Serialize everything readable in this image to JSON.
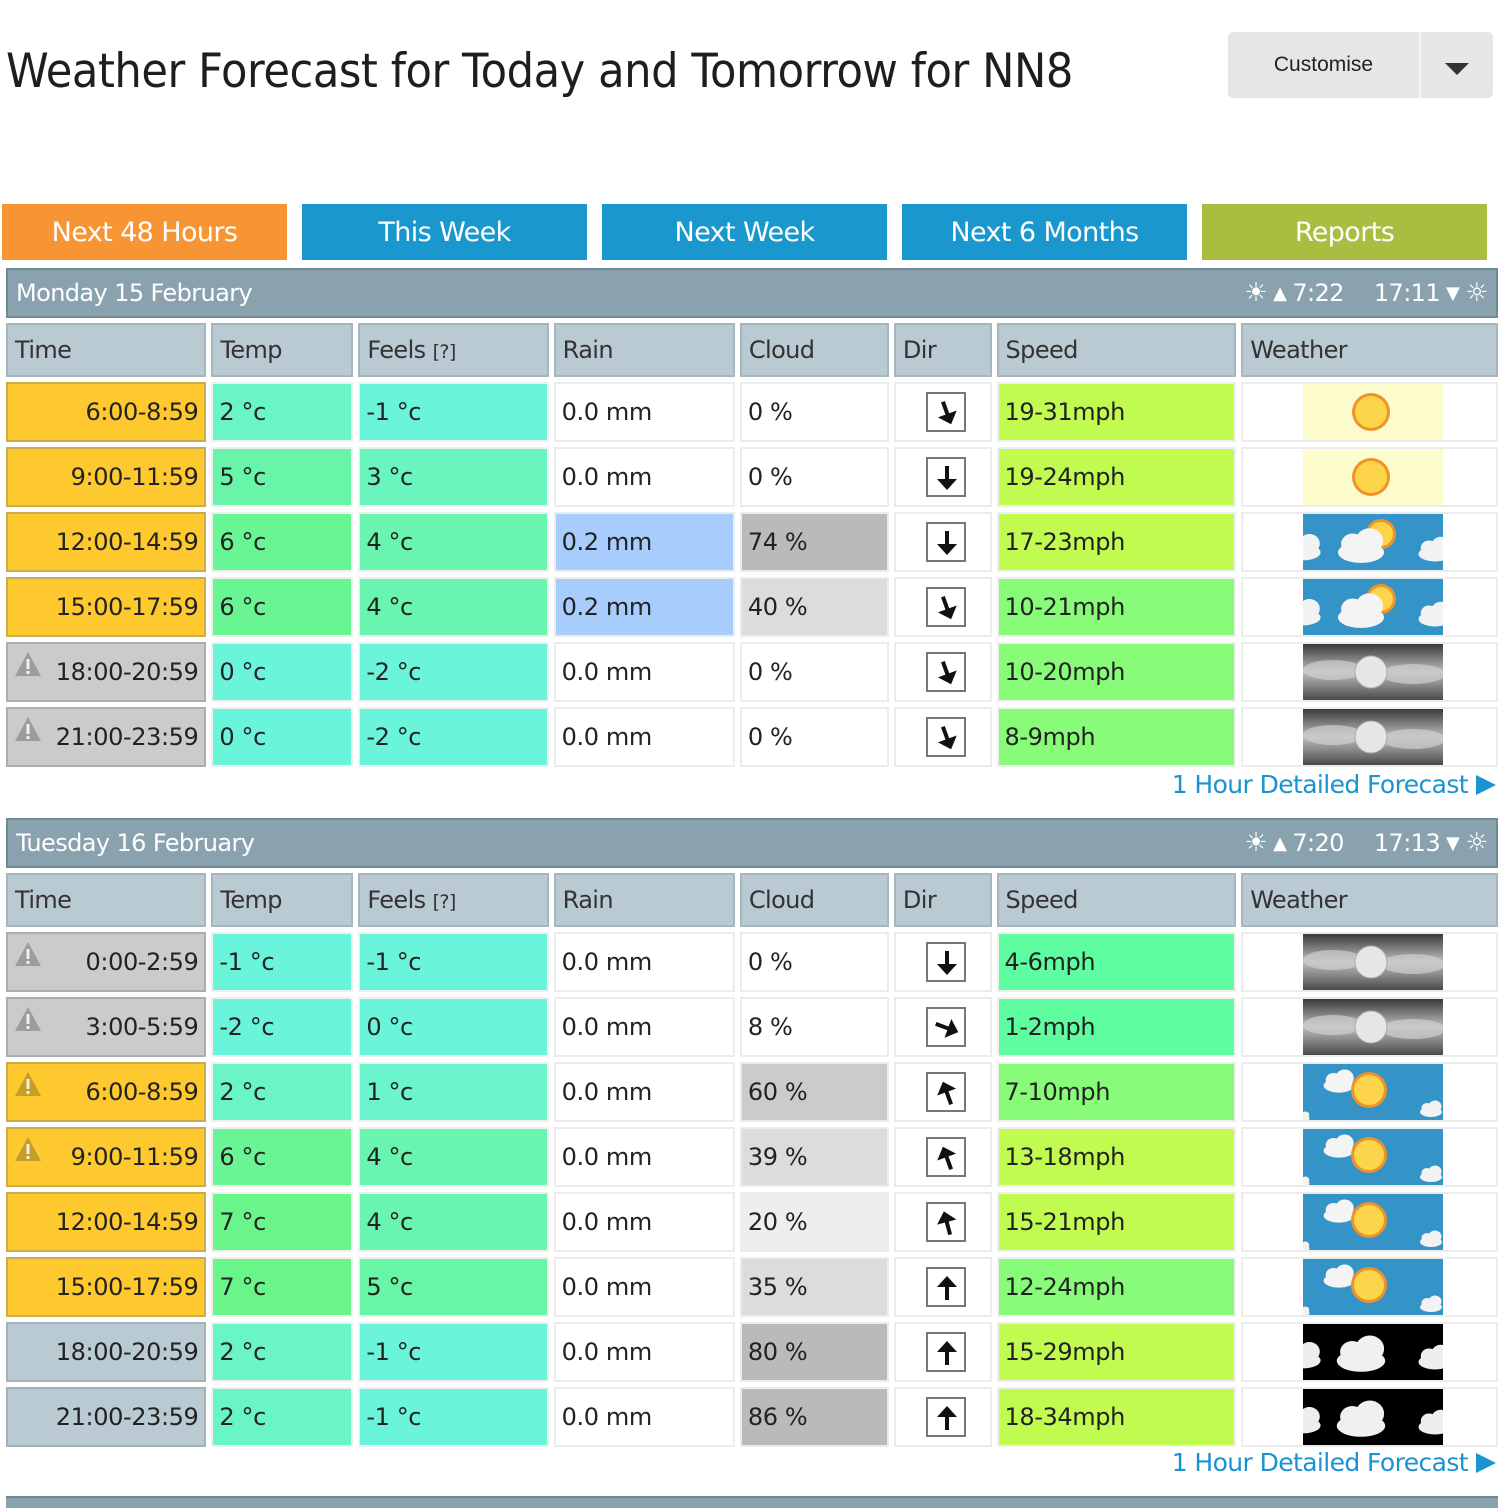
{
  "header": {
    "title": "Weather Forecast for Today and Tomorrow for NN8",
    "customise_label": "Customise"
  },
  "tabs": [
    {
      "label": "Next 48 Hours",
      "color": "#f79433",
      "active": true
    },
    {
      "label": "This Week",
      "color": "#1a97cd",
      "active": false
    },
    {
      "label": "Next Week",
      "color": "#1a97cd",
      "active": false
    },
    {
      "label": "Next 6 Months",
      "color": "#1a97cd",
      "active": false
    },
    {
      "label": "Reports",
      "color": "#a9bd40",
      "active": false
    }
  ],
  "columns": {
    "time": "Time",
    "temp": "Temp",
    "feels": "Feels",
    "feels_help": "[?]",
    "rain": "Rain",
    "cloud": "Cloud",
    "dir": "Dir",
    "speed": "Speed",
    "weather": "Weather"
  },
  "detail_link_label": "1 Hour Detailed Forecast",
  "days": [
    {
      "title": "Monday 15 February",
      "sunrise": "7:22",
      "sunset": "17:11",
      "rows": [
        {
          "time": "6:00-8:59",
          "period": "day",
          "warning": false,
          "temp": "2 °c",
          "temp_bg": "#69f5c5",
          "feels": "-1 °c",
          "feels_bg": "#6af5db",
          "rain": "0.0 mm",
          "rain_bg": "#ffffff",
          "cloud": "0 %",
          "cloud_bg": "#ffffff",
          "dir_deg": 340,
          "speed": "19-31mph",
          "speed_bg": "#c2fb50",
          "weather": "sunny"
        },
        {
          "time": "9:00-11:59",
          "period": "day",
          "warning": false,
          "temp": "5 °c",
          "temp_bg": "#69f5a8",
          "feels": "3 °c",
          "feels_bg": "#69f5bd",
          "rain": "0.0 mm",
          "rain_bg": "#ffffff",
          "cloud": "0 %",
          "cloud_bg": "#ffffff",
          "dir_deg": 0,
          "speed": "19-24mph",
          "speed_bg": "#c2fb50",
          "weather": "sunny"
        },
        {
          "time": "12:00-14:59",
          "period": "day",
          "warning": false,
          "temp": "6 °c",
          "temp_bg": "#69f593",
          "feels": "4 °c",
          "feels_bg": "#69f5b0",
          "rain": "0.2 mm",
          "rain_bg": "#a8cdfc",
          "cloud": "74 %",
          "cloud_bg": "#bababa",
          "dir_deg": 0,
          "speed": "17-23mph",
          "speed_bg": "#c2fb50",
          "weather": "cloudy-sun"
        },
        {
          "time": "15:00-17:59",
          "period": "day",
          "warning": false,
          "temp": "6 °c",
          "temp_bg": "#69f593",
          "feels": "4 °c",
          "feels_bg": "#69f5b0",
          "rain": "0.2 mm",
          "rain_bg": "#a8cdfc",
          "cloud": "40 %",
          "cloud_bg": "#dcdcdc",
          "dir_deg": 340,
          "speed": "10-21mph",
          "speed_bg": "#88fc78",
          "weather": "cloudy-sun"
        },
        {
          "time": "18:00-20:59",
          "period": "night",
          "warning": true,
          "temp": "0 °c",
          "temp_bg": "#6af5db",
          "feels": "-2 °c",
          "feels_bg": "#6af5db",
          "rain": "0.0 mm",
          "rain_bg": "#ffffff",
          "cloud": "0 %",
          "cloud_bg": "#ffffff",
          "dir_deg": 340,
          "speed": "10-20mph",
          "speed_bg": "#88fc78",
          "weather": "fog-moon"
        },
        {
          "time": "21:00-23:59",
          "period": "night",
          "warning": true,
          "temp": "0 °c",
          "temp_bg": "#6af5db",
          "feels": "-2 °c",
          "feels_bg": "#6af5db",
          "rain": "0.0 mm",
          "rain_bg": "#ffffff",
          "cloud": "0 %",
          "cloud_bg": "#ffffff",
          "dir_deg": 340,
          "speed": "8-9mph",
          "speed_bg": "#88fc78",
          "weather": "fog-moon"
        }
      ]
    },
    {
      "title": "Tuesday 16 February",
      "sunrise": "7:20",
      "sunset": "17:13",
      "rows": [
        {
          "time": "0:00-2:59",
          "period": "night",
          "warning": true,
          "temp": "-1 °c",
          "temp_bg": "#6af5db",
          "feels": "-1 °c",
          "feels_bg": "#6af5db",
          "rain": "0.0 mm",
          "rain_bg": "#ffffff",
          "cloud": "0 %",
          "cloud_bg": "#ffffff",
          "dir_deg": 0,
          "speed": "4-6mph",
          "speed_bg": "#5efea0",
          "weather": "fog-moon"
        },
        {
          "time": "3:00-5:59",
          "period": "night",
          "warning": true,
          "temp": "-2 °c",
          "temp_bg": "#6af5db",
          "feels": "0 °c",
          "feels_bg": "#6af5db",
          "rain": "0.0 mm",
          "rain_bg": "#ffffff",
          "cloud": "8 %",
          "cloud_bg": "#ffffff",
          "dir_deg": 290,
          "speed": "1-2mph",
          "speed_bg": "#5efea0",
          "weather": "fog-moon"
        },
        {
          "time": "6:00-8:59",
          "period": "day",
          "warning": true,
          "temp": "2 °c",
          "temp_bg": "#69f5c5",
          "feels": "1 °c",
          "feels_bg": "#6af5cc",
          "rain": "0.0 mm",
          "rain_bg": "#ffffff",
          "cloud": "60 %",
          "cloud_bg": "#cbcbcb",
          "dir_deg": 160,
          "speed": "7-10mph",
          "speed_bg": "#88fc78",
          "weather": "sun-clouds"
        },
        {
          "time": "9:00-11:59",
          "period": "day",
          "warning": true,
          "temp": "6 °c",
          "temp_bg": "#69f593",
          "feels": "4 °c",
          "feels_bg": "#69f5b0",
          "rain": "0.0 mm",
          "rain_bg": "#ffffff",
          "cloud": "39 %",
          "cloud_bg": "#dcdcdc",
          "dir_deg": 160,
          "speed": "13-18mph",
          "speed_bg": "#c2fb50",
          "weather": "sun-clouds"
        },
        {
          "time": "12:00-14:59",
          "period": "day",
          "warning": false,
          "temp": "7 °c",
          "temp_bg": "#69f58a",
          "feels": "4 °c",
          "feels_bg": "#69f5b0",
          "rain": "0.0 mm",
          "rain_bg": "#ffffff",
          "cloud": "20 %",
          "cloud_bg": "#eeeeee",
          "dir_deg": 165,
          "speed": "15-21mph",
          "speed_bg": "#c2fb50",
          "weather": "sun-clouds"
        },
        {
          "time": "15:00-17:59",
          "period": "day",
          "warning": false,
          "temp": "7 °c",
          "temp_bg": "#69f58a",
          "feels": "5 °c",
          "feels_bg": "#69f5a8",
          "rain": "0.0 mm",
          "rain_bg": "#ffffff",
          "cloud": "35 %",
          "cloud_bg": "#dcdcdc",
          "dir_deg": 180,
          "speed": "12-24mph",
          "speed_bg": "#88fc78",
          "weather": "sun-clouds"
        },
        {
          "time": "18:00-20:59",
          "period": "evening",
          "warning": false,
          "temp": "2 °c",
          "temp_bg": "#69f5c5",
          "feels": "-1 °c",
          "feels_bg": "#6af5db",
          "rain": "0.0 mm",
          "rain_bg": "#ffffff",
          "cloud": "80 %",
          "cloud_bg": "#bababa",
          "dir_deg": 180,
          "speed": "15-29mph",
          "speed_bg": "#c2fb50",
          "weather": "cloudy-night"
        },
        {
          "time": "21:00-23:59",
          "period": "evening",
          "warning": false,
          "temp": "2 °c",
          "temp_bg": "#69f5c5",
          "feels": "-1 °c",
          "feels_bg": "#6af5db",
          "rain": "0.0 mm",
          "rain_bg": "#ffffff",
          "cloud": "86 %",
          "cloud_bg": "#bababa",
          "dir_deg": 180,
          "speed": "18-34mph",
          "speed_bg": "#c2fb50",
          "weather": "cloudy-night"
        }
      ]
    }
  ]
}
